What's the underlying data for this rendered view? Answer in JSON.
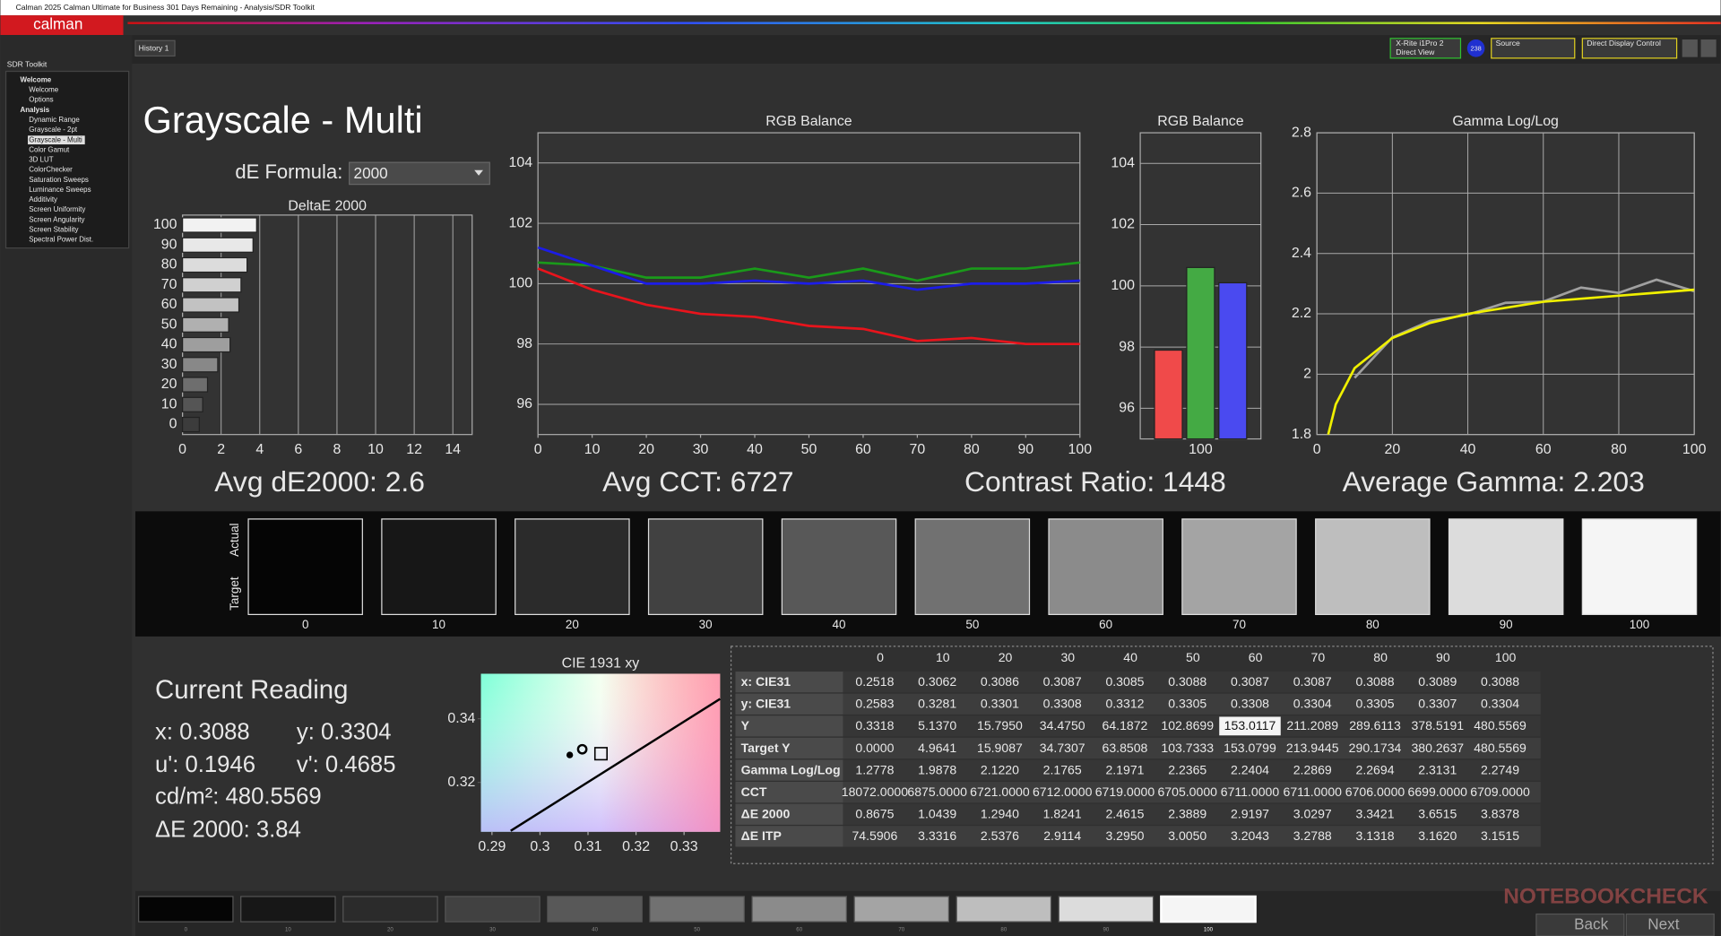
{
  "window_title": "Calman 2025 Calman Ultimate for Business 301 Days Remaining  - Analysis/SDR Toolkit",
  "logo": "calman",
  "toolbar": {
    "history_tab": "History 1",
    "meter": "X-Rite i1Pro 2",
    "meter_mode": "Direct View",
    "badge": "238",
    "source": "Source",
    "display": "Direct Display Control"
  },
  "sidebar": {
    "title": "SDR Toolkit",
    "groups": [
      {
        "name": "Welcome",
        "items": [
          "Welcome",
          "Options"
        ]
      },
      {
        "name": "Analysis",
        "items": [
          "Dynamic Range",
          "Grayscale - 2pt",
          "Grayscale - Multi",
          "Color Gamut",
          "3D LUT",
          "ColorChecker",
          "Saturation Sweeps",
          "Luminance Sweeps",
          "Additivity",
          "Screen Uniformity",
          "Screen Angularity",
          "Screen Stability",
          "Spectral Power Dist."
        ]
      }
    ]
  },
  "page_title": "Grayscale - Multi",
  "de_formula": {
    "label": "dE Formula:",
    "value": "2000"
  },
  "chart_data": [
    {
      "type": "hbar",
      "title": "DeltaE 2000",
      "summary": "Avg dE2000: 2.6",
      "categories": [
        "100",
        "90",
        "80",
        "70",
        "60",
        "50",
        "40",
        "30",
        "20",
        "10",
        "0"
      ],
      "values": [
        3.8378,
        3.6515,
        3.3421,
        3.0297,
        2.9197,
        2.3889,
        2.4615,
        1.8241,
        1.294,
        1.0439,
        0.8675
      ],
      "colors": [
        "#f2f2f2",
        "#e8e8e8",
        "#dcdcdc",
        "#d0d0d0",
        "#c2c2c2",
        "#b0b0b0",
        "#9e9e9e",
        "#888888",
        "#6e6e6e",
        "#555555",
        "#3c3c3c"
      ],
      "xlim": [
        0,
        15
      ],
      "xticks": [
        0,
        2,
        4,
        6,
        8,
        10,
        12,
        14
      ],
      "grid": "x"
    },
    {
      "type": "line",
      "title": "RGB Balance",
      "summary": "Avg CCT: 6727",
      "x": [
        0,
        10,
        20,
        30,
        40,
        50,
        60,
        70,
        80,
        90,
        100
      ],
      "series": [
        {
          "color": "#e8141c",
          "values": [
            100.5,
            99.8,
            99.3,
            99.0,
            98.9,
            98.6,
            98.5,
            98.1,
            98.2,
            98.0,
            98.0
          ]
        },
        {
          "color": "#1a9a1a",
          "values": [
            100.7,
            100.6,
            100.2,
            100.2,
            100.5,
            100.2,
            100.5,
            100.1,
            100.5,
            100.5,
            100.7
          ]
        },
        {
          "color": "#1c1ce8",
          "values": [
            101.2,
            100.6,
            100.0,
            100.0,
            100.1,
            100.0,
            100.1,
            99.8,
            100.0,
            100.0,
            100.1
          ]
        }
      ],
      "xlim": [
        0,
        100
      ],
      "ylim": [
        95,
        105
      ],
      "xticks": [
        0,
        10,
        20,
        30,
        40,
        50,
        60,
        70,
        80,
        90,
        100
      ],
      "yticks": [
        96,
        98,
        100,
        102,
        104
      ],
      "grid": "y"
    },
    {
      "type": "bar",
      "title": "RGB Balance",
      "summary": "Contrast Ratio: 1448",
      "categories": [
        "100"
      ],
      "series": [
        {
          "color": "#f04a4a",
          "values": [
            97.9
          ]
        },
        {
          "color": "#44aa44",
          "values": [
            100.6
          ]
        },
        {
          "color": "#4a4af0",
          "values": [
            100.1
          ]
        }
      ],
      "ylim": [
        95,
        105
      ],
      "yticks": [
        96,
        98,
        100,
        102,
        104
      ],
      "grid": "y"
    },
    {
      "type": "line",
      "title": "Gamma Log/Log",
      "summary": "Average Gamma: 2.203",
      "series": [
        {
          "color": "#a0a0a0",
          "x": [
            10,
            20,
            30,
            40,
            50,
            60,
            70,
            80,
            90,
            100
          ],
          "values": [
            1.9878,
            2.122,
            2.1765,
            2.1971,
            2.2365,
            2.2404,
            2.2869,
            2.2694,
            2.3131,
            2.2749
          ]
        },
        {
          "color": "#f0f000",
          "x": [
            3,
            5,
            10,
            20,
            30,
            40,
            50,
            60,
            70,
            80,
            90,
            100
          ],
          "values": [
            1.8,
            1.9,
            2.02,
            2.12,
            2.17,
            2.2,
            2.22,
            2.24,
            2.25,
            2.26,
            2.27,
            2.28
          ]
        }
      ],
      "xlim": [
        0,
        100
      ],
      "ylim": [
        1.8,
        2.8
      ],
      "xticks": [
        0,
        20,
        40,
        60,
        80,
        100
      ],
      "yticks": [
        1.8,
        2,
        2.2,
        2.4,
        2.6,
        2.8
      ],
      "grid": "both"
    },
    {
      "type": "scatter",
      "title": "CIE 1931 xy",
      "series": [
        {
          "marker": "line",
          "color": "#000000",
          "x": [
            0.2939,
            0.3375
          ],
          "values": [
            0.3048,
            0.3462
          ]
        },
        {
          "marker": "dot",
          "color": "#000000",
          "x": [
            0.3062
          ],
          "values": [
            0.3286
          ]
        },
        {
          "marker": "circle",
          "color": "#000000",
          "x": [
            0.3088
          ],
          "values": [
            0.3304
          ]
        },
        {
          "marker": "square",
          "color": "#000000",
          "x": [
            0.3127
          ],
          "values": [
            0.329
          ]
        }
      ],
      "xlim": [
        0.2877,
        0.3375
      ],
      "ylim": [
        0.3045,
        0.3541
      ],
      "xticks": [
        0.29,
        0.3,
        0.31,
        0.32,
        0.33
      ],
      "yticks": [
        0.32,
        0.34
      ]
    }
  ],
  "swatches": {
    "actual_label": "Actual",
    "target_label": "Target",
    "labels": [
      "0",
      "10",
      "20",
      "30",
      "40",
      "50",
      "60",
      "70",
      "80",
      "90",
      "100"
    ],
    "colors": [
      "#050505",
      "#171717",
      "#2b2b2b",
      "#414141",
      "#585858",
      "#717171",
      "#8b8b8b",
      "#a4a4a4",
      "#bebebe",
      "#dcdcdc",
      "#f5f5f5"
    ]
  },
  "current_reading": {
    "title": "Current Reading",
    "x": "x: 0.3088",
    "y": "y: 0.3304",
    "u": "u': 0.1946",
    "v": "v': 0.4685",
    "luminance": "cd/m²: 480.5569",
    "delta_e": "ΔE 2000: 3.84"
  },
  "table": {
    "header": [
      "0",
      "10",
      "20",
      "30",
      "40",
      "50",
      "60",
      "70",
      "80",
      "90",
      "100"
    ],
    "rows": [
      [
        "x: CIE31",
        "0.2518",
        "0.3062",
        "0.3086",
        "0.3087",
        "0.3085",
        "0.3088",
        "0.3087",
        "0.3087",
        "0.3088",
        "0.3089",
        "0.3088"
      ],
      [
        "y: CIE31",
        "0.2583",
        "0.3281",
        "0.3301",
        "0.3308",
        "0.3312",
        "0.3305",
        "0.3308",
        "0.3304",
        "0.3305",
        "0.3307",
        "0.3304"
      ],
      [
        "Y",
        "0.3318",
        "5.1370",
        "15.7950",
        "34.4750",
        "64.1872",
        "102.8699",
        "153.0117",
        "211.2089",
        "289.6113",
        "378.5191",
        "480.5569"
      ],
      [
        "Target Y",
        "0.0000",
        "4.9641",
        "15.9087",
        "34.7307",
        "63.8508",
        "103.7333",
        "153.0799",
        "213.9445",
        "290.1734",
        "380.2637",
        "480.5569"
      ],
      [
        "Gamma Log/Log",
        "1.2778",
        "1.9878",
        "2.1220",
        "2.1765",
        "2.1971",
        "2.2365",
        "2.2404",
        "2.2869",
        "2.2694",
        "2.3131",
        "2.2749"
      ],
      [
        "CCT",
        "18072.0000",
        "6875.0000",
        "6721.0000",
        "6712.0000",
        "6719.0000",
        "6705.0000",
        "6711.0000",
        "6711.0000",
        "6706.0000",
        "6699.0000",
        "6709.0000"
      ],
      [
        "ΔE 2000",
        "0.8675",
        "1.0439",
        "1.2940",
        "1.8241",
        "2.4615",
        "2.3889",
        "2.9197",
        "3.0297",
        "3.3421",
        "3.6515",
        "3.8378"
      ],
      [
        "ΔE ITP",
        "74.5906",
        "3.3316",
        "2.5376",
        "2.9114",
        "3.2950",
        "3.0050",
        "3.2043",
        "3.2788",
        "3.1318",
        "3.1620",
        "3.1515"
      ]
    ]
  },
  "bottom_strip": {
    "labels": [
      "0",
      "10",
      "20",
      "30",
      "40",
      "50",
      "60",
      "70",
      "80",
      "90",
      "100"
    ]
  },
  "nav": {
    "back": "Back",
    "next": "Next"
  },
  "watermark": "NOTEBOOKCHECK"
}
